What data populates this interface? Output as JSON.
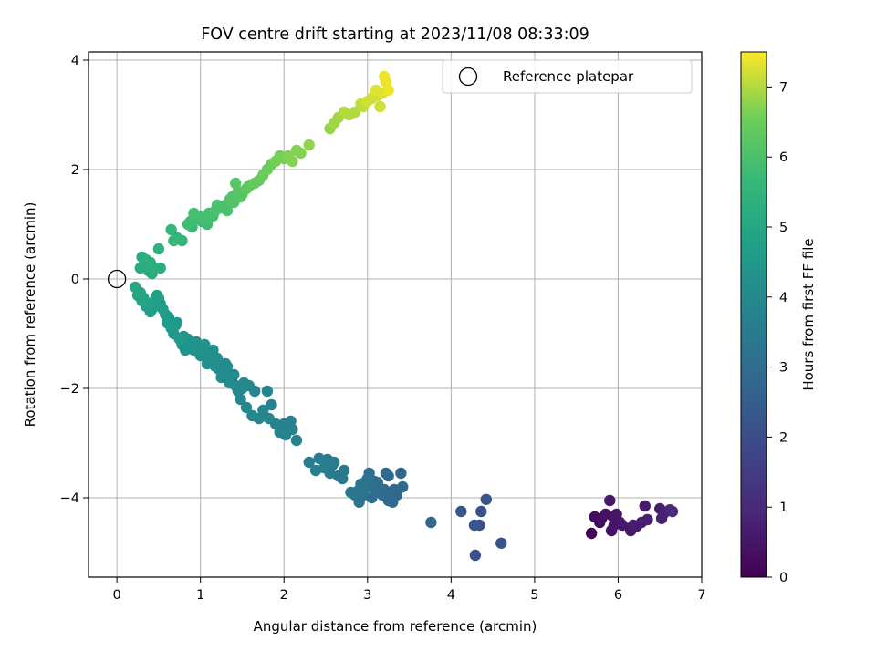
{
  "chart_data": {
    "type": "scatter",
    "title": "FOV centre drift starting at 2023/11/08 08:33:09",
    "xlabel": "Angular distance from reference (arcmin)",
    "ylabel": "Rotation from reference (arcmin)",
    "xlim": [
      -0.34,
      7.0
    ],
    "ylim": [
      -5.45,
      4.15
    ],
    "xticks": [
      0,
      1,
      2,
      3,
      4,
      5,
      6,
      7
    ],
    "yticks": [
      -4,
      -2,
      0,
      2,
      4
    ],
    "grid": true,
    "colormap": "viridis",
    "colorbar": {
      "label": "Hours from first FF file",
      "range": [
        0,
        7.5
      ],
      "ticks": [
        0,
        1,
        2,
        3,
        4,
        5,
        6,
        7
      ]
    },
    "legend": {
      "placement": "top-right",
      "entries": [
        "Reference platepar"
      ]
    },
    "reference_point": {
      "x": 0.0,
      "y": 0.0,
      "label": "Reference platepar"
    },
    "series": [
      {
        "x": [
          5.68,
          5.72,
          5.8,
          5.85,
          5.9,
          5.92,
          5.95,
          5.98,
          6.02,
          6.15,
          6.18,
          6.22,
          6.28,
          6.32,
          6.35,
          6.5,
          6.52,
          6.55,
          6.62,
          6.65,
          5.78,
          5.94,
          6.05
        ],
        "y": [
          -4.65,
          -4.35,
          -4.38,
          -4.3,
          -4.05,
          -4.6,
          -4.5,
          -4.3,
          -4.45,
          -4.6,
          -4.5,
          -4.52,
          -4.45,
          -4.15,
          -4.4,
          -4.2,
          -4.38,
          -4.28,
          -4.22,
          -4.25,
          -4.45,
          -4.35,
          -4.5
        ],
        "c": [
          0.1,
          0.25,
          0.3,
          0.4,
          0.55,
          0.35,
          0.45,
          0.5,
          0.5,
          0.55,
          0.65,
          0.7,
          0.7,
          0.6,
          0.75,
          0.7,
          0.8,
          0.8,
          0.9,
          1.0,
          0.2,
          0.4,
          0.55
        ]
      },
      {
        "x": [
          3.76,
          4.12,
          4.28,
          4.29,
          4.34,
          4.36,
          4.42,
          4.6
        ],
        "y": [
          -4.45,
          -4.25,
          -4.5,
          -5.05,
          -4.5,
          -4.25,
          -4.03,
          -4.83
        ],
        "c": [
          2.8,
          2.3,
          2.2,
          2.1,
          2.0,
          2.1,
          2.2,
          2.2
        ]
      },
      {
        "x": [
          2.3,
          2.38,
          2.42,
          2.48,
          2.52,
          2.55,
          2.58,
          2.6,
          2.65,
          2.7,
          2.72,
          2.8,
          2.85,
          2.9,
          2.92,
          2.95,
          2.98,
          3.0,
          3.02,
          3.05,
          3.05,
          3.08,
          3.1,
          3.12,
          3.15,
          3.18,
          3.2,
          3.22,
          3.25,
          3.28,
          3.3,
          3.32,
          3.35,
          3.4,
          3.42,
          2.95,
          3.12,
          3.25,
          2.88
        ],
        "y": [
          -3.35,
          -3.5,
          -3.28,
          -3.45,
          -3.3,
          -3.55,
          -3.4,
          -3.35,
          -3.6,
          -3.65,
          -3.5,
          -3.9,
          -3.95,
          -4.08,
          -3.75,
          -3.9,
          -3.7,
          -3.65,
          -3.55,
          -3.8,
          -4.0,
          -3.7,
          -3.85,
          -3.75,
          -3.9,
          -3.95,
          -3.85,
          -3.55,
          -4.05,
          -3.9,
          -4.08,
          -3.85,
          -3.95,
          -3.55,
          -3.8,
          -3.95,
          -3.72,
          -3.6,
          -3.88
        ],
        "c": [
          3.6,
          3.6,
          3.6,
          3.6,
          3.5,
          3.5,
          3.5,
          3.5,
          3.4,
          3.4,
          3.4,
          3.3,
          3.3,
          3.2,
          3.2,
          3.2,
          3.2,
          3.1,
          3.1,
          3.1,
          3.0,
          3.0,
          3.0,
          3.0,
          2.9,
          2.9,
          2.9,
          2.9,
          2.9,
          2.8,
          2.8,
          2.8,
          2.8,
          2.8,
          2.8,
          3.1,
          3.0,
          2.9,
          3.3
        ]
      },
      {
        "x": [
          0.22,
          0.25,
          0.28,
          0.3,
          0.32,
          0.35,
          0.38,
          0.4,
          0.42,
          0.45,
          0.48,
          0.5,
          0.52,
          0.55,
          0.58,
          0.6,
          0.62,
          0.65,
          0.68,
          0.7,
          0.72,
          0.75,
          0.78,
          0.8,
          0.82,
          0.85,
          0.88,
          0.9,
          0.92,
          0.95,
          0.98,
          1.0,
          1.02,
          1.05,
          1.08,
          1.1,
          1.12,
          1.15,
          1.18,
          1.2,
          1.22,
          1.25,
          1.28,
          1.3,
          1.32,
          1.35,
          1.38,
          1.4,
          1.42,
          1.45,
          1.48,
          1.5,
          1.52,
          1.55,
          1.58,
          1.62,
          1.65,
          1.7,
          1.75,
          1.8,
          1.82,
          1.85,
          1.9,
          1.95,
          1.98,
          2.0,
          2.02,
          2.05,
          2.08,
          2.1,
          2.15
        ],
        "y": [
          -0.15,
          -0.3,
          -0.25,
          -0.4,
          -0.35,
          -0.5,
          -0.45,
          -0.6,
          -0.55,
          -0.4,
          -0.3,
          -0.35,
          -0.45,
          -0.55,
          -0.65,
          -0.8,
          -0.7,
          -0.9,
          -1.0,
          -0.85,
          -0.8,
          -1.1,
          -1.2,
          -1.05,
          -1.3,
          -1.1,
          -1.25,
          -1.2,
          -1.3,
          -1.15,
          -1.35,
          -1.4,
          -1.25,
          -1.2,
          -1.55,
          -1.35,
          -1.45,
          -1.3,
          -1.6,
          -1.45,
          -1.65,
          -1.8,
          -1.7,
          -1.55,
          -1.6,
          -1.9,
          -1.8,
          -1.75,
          -1.95,
          -2.05,
          -2.2,
          -2.0,
          -1.9,
          -2.35,
          -1.95,
          -2.5,
          -2.05,
          -2.55,
          -2.4,
          -2.05,
          -2.55,
          -2.3,
          -2.65,
          -2.8,
          -2.7,
          -2.65,
          -2.85,
          -2.75,
          -2.6,
          -2.75,
          -2.95
        ],
        "c": [
          5.0,
          4.9,
          5.0,
          4.9,
          4.9,
          4.8,
          4.8,
          4.7,
          4.7,
          4.8,
          4.8,
          4.8,
          4.7,
          4.7,
          4.6,
          4.6,
          4.6,
          4.6,
          4.5,
          4.5,
          4.5,
          4.5,
          4.4,
          4.4,
          4.4,
          4.4,
          4.4,
          4.4,
          4.3,
          4.3,
          4.3,
          4.3,
          4.3,
          4.3,
          4.2,
          4.2,
          4.2,
          4.2,
          4.2,
          4.2,
          4.1,
          4.1,
          4.1,
          4.1,
          4.1,
          4.1,
          4.1,
          4.0,
          4.0,
          4.0,
          4.0,
          4.0,
          4.0,
          4.0,
          4.0,
          3.9,
          3.9,
          3.9,
          3.9,
          3.9,
          3.9,
          3.8,
          3.8,
          3.8,
          3.8,
          3.8,
          3.7,
          3.7,
          3.7,
          3.7,
          3.7
        ]
      },
      {
        "x": [
          0.28,
          0.3,
          0.32,
          0.35,
          0.38,
          0.4,
          0.42,
          0.45,
          0.5,
          0.52,
          0.65,
          0.68,
          0.72,
          0.78,
          0.85,
          0.88,
          0.9,
          0.92,
          0.95,
          1.0,
          1.02,
          1.05,
          1.08,
          1.1,
          1.15,
          1.18,
          1.2,
          1.25,
          1.3,
          1.32,
          1.35,
          1.38,
          1.4,
          1.42,
          1.45,
          1.48,
          1.5,
          1.55,
          1.58,
          1.6,
          1.65,
          1.7,
          1.75,
          1.8,
          1.85,
          1.9,
          1.95,
          2.0,
          2.05,
          2.1,
          2.15,
          2.2,
          2.3
        ],
        "y": [
          0.2,
          0.4,
          0.25,
          0.35,
          0.15,
          0.3,
          0.1,
          0.2,
          0.55,
          0.2,
          0.9,
          0.7,
          0.75,
          0.7,
          1.0,
          1.05,
          0.95,
          1.2,
          1.1,
          1.15,
          1.05,
          1.1,
          1.0,
          1.2,
          1.15,
          1.25,
          1.35,
          1.3,
          1.35,
          1.25,
          1.45,
          1.5,
          1.4,
          1.75,
          1.6,
          1.5,
          1.55,
          1.65,
          1.7,
          1.72,
          1.75,
          1.8,
          1.9,
          2.0,
          2.1,
          2.15,
          2.25,
          2.2,
          2.25,
          2.15,
          2.35,
          2.3,
          2.45
        ],
        "c": [
          5.2,
          5.2,
          5.2,
          5.3,
          5.2,
          5.3,
          5.2,
          5.3,
          5.4,
          5.3,
          5.6,
          5.5,
          5.6,
          5.6,
          5.8,
          5.8,
          5.7,
          5.9,
          5.8,
          5.9,
          5.8,
          5.9,
          5.8,
          5.9,
          5.9,
          6.0,
          6.0,
          6.0,
          6.0,
          6.0,
          6.1,
          6.1,
          6.1,
          6.2,
          6.2,
          6.2,
          6.2,
          6.3,
          6.3,
          6.3,
          6.4,
          6.4,
          6.5,
          6.5,
          6.5,
          6.6,
          6.6,
          6.6,
          6.7,
          6.7,
          6.7,
          6.7,
          6.8
        ]
      },
      {
        "x": [
          2.55,
          2.6,
          2.65,
          2.72,
          2.78,
          2.85,
          2.92,
          2.95,
          3.0,
          3.05,
          3.1,
          3.12,
          3.15,
          3.18,
          3.2,
          3.22,
          3.25
        ],
        "y": [
          2.75,
          2.85,
          2.95,
          3.05,
          3.0,
          3.05,
          3.2,
          3.15,
          3.25,
          3.3,
          3.45,
          3.35,
          3.15,
          3.4,
          3.7,
          3.6,
          3.45
        ],
        "c": [
          6.8,
          6.9,
          6.9,
          7.0,
          7.0,
          7.0,
          7.1,
          7.1,
          7.2,
          7.2,
          7.3,
          7.2,
          7.2,
          7.3,
          7.4,
          7.4,
          7.4
        ]
      }
    ]
  }
}
